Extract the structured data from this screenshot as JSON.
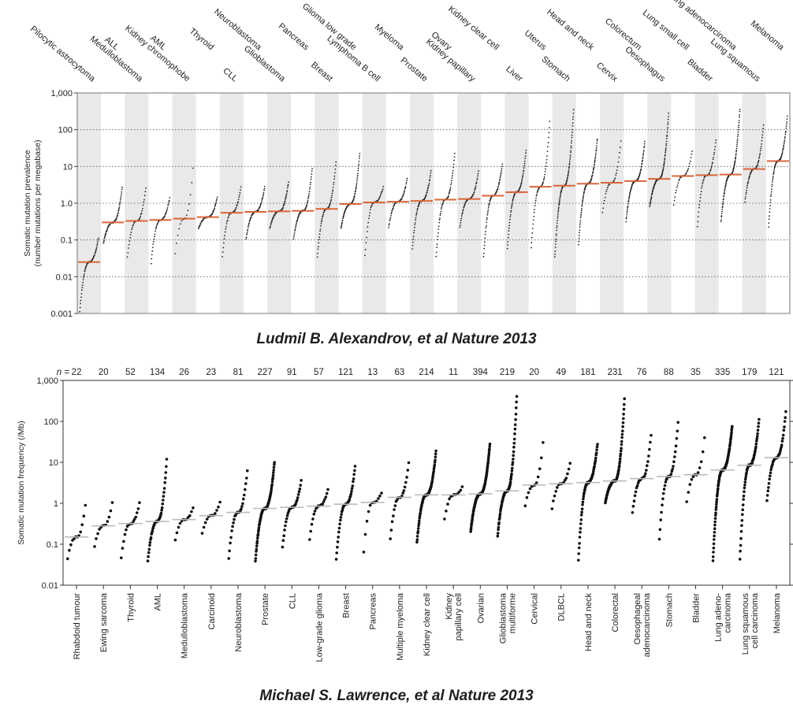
{
  "captions": {
    "top": "Ludmil B. Alexandrov, et al Nature 2013",
    "bottom": "Michael S. Lawrence, et al Nature 2013"
  },
  "chart_data": [
    {
      "type": "scatter",
      "title": "",
      "ylabel": "Somatic mutation prevalence\n(number mutations per megabase)",
      "yscale": "log",
      "ylim": [
        0.001,
        1000
      ],
      "yticks": [
        "0.001",
        "0.01",
        "0.1",
        "1.0",
        "10",
        "100",
        "1,000"
      ],
      "ytick_values": [
        0.001,
        0.01,
        0.1,
        1,
        10,
        100,
        1000
      ],
      "grid": "dotted horizontal at each decade",
      "median_color": "#d9663a",
      "point_color": "#222222",
      "categories": [
        "Pilocytic astrocytoma",
        "ALL",
        "Medulloblastoma",
        "AML",
        "Kidney chromophobe",
        "Thyroid",
        "CLL",
        "Neuroblastoma",
        "Glioblastoma",
        "Pancreas",
        "Breast",
        "Glioma low grade",
        "Lymphoma B cell",
        "Myeloma",
        "Prostate",
        "Ovary",
        "Kidney papillary",
        "Kidney clear cell",
        "Liver",
        "Uterus",
        "Stomach",
        "Head and neck",
        "Cervix",
        "Colorectum",
        "Oesophagus",
        "Lung small cell",
        "Bladder",
        "Lung adenocarcinoma",
        "Lung squamous",
        "Melanoma"
      ],
      "medians": [
        0.025,
        0.3,
        0.33,
        0.35,
        0.38,
        0.42,
        0.55,
        0.58,
        0.6,
        0.62,
        0.7,
        0.95,
        1.05,
        1.1,
        1.15,
        1.25,
        1.3,
        1.6,
        2.0,
        2.8,
        3.0,
        3.4,
        3.6,
        4.0,
        4.6,
        5.5,
        5.8,
        6.0,
        8.5,
        14
      ],
      "mins": [
        0.001,
        0.08,
        0.03,
        0.02,
        0.03,
        0.2,
        0.03,
        0.1,
        0.2,
        0.1,
        0.03,
        0.2,
        0.03,
        0.2,
        0.05,
        0.03,
        0.2,
        0.03,
        0.05,
        0.05,
        0.03,
        0.07,
        0.5,
        0.3,
        0.8,
        0.8,
        0.2,
        0.3,
        1.0,
        0.2
      ],
      "maxs": [
        0.12,
        3,
        3,
        1.5,
        15,
        1.5,
        3,
        3,
        4,
        10,
        15,
        25,
        3,
        5,
        8,
        25,
        8,
        12,
        30,
        200,
        400,
        60,
        60,
        50,
        300,
        30,
        60,
        400,
        150,
        250
      ],
      "counts": [
        55,
        65,
        35,
        45,
        15,
        50,
        40,
        55,
        60,
        60,
        55,
        80,
        35,
        50,
        60,
        55,
        50,
        65,
        65,
        50,
        95,
        90,
        30,
        80,
        100,
        30,
        45,
        100,
        55,
        75
      ]
    },
    {
      "type": "scatter",
      "title": "",
      "ylabel": "Somatic mutation frequency (/Mb)",
      "yscale": "log",
      "ylim": [
        0.01,
        1000
      ],
      "yticks": [
        "0.01",
        "0.1",
        "1",
        "10",
        "100",
        "1,000"
      ],
      "ytick_values": [
        0.01,
        0.1,
        1,
        10,
        100,
        1000
      ],
      "n_prefix": "n =",
      "median_color": "#bbbbbb",
      "point_color": "#111111",
      "categories": [
        "Rhabdoid tumour",
        "Ewing sarcoma",
        "Thyroid",
        "AML",
        "Medulloblastoma",
        "Carcinoid",
        "Neuroblastoma",
        "Prostate",
        "CLL",
        "Low-grade glioma",
        "Breast",
        "Pancreas",
        "Multiple myeloma",
        "Kidney clear cell",
        "Kidney papillary cell",
        "Ovarian",
        "Glioblastoma multiforme",
        "Cervical",
        "DLBCL",
        "Head and neck",
        "Colorectal",
        "Oesophageal adenocarcinoma",
        "Stomach",
        "Bladder",
        "Lung adeno-carcinoma",
        "Lung squamous cell carcinoma",
        "Melanoma"
      ],
      "n": [
        "22",
        "20",
        "52",
        "134",
        "26",
        "23",
        "81",
        "227",
        "91",
        "57",
        "121",
        "13",
        "63",
        "214",
        "11",
        "394",
        "219",
        "20",
        "49",
        "181",
        "231",
        "76",
        "88",
        "35",
        "335",
        "179",
        "121"
      ],
      "medians": [
        0.15,
        0.28,
        0.32,
        0.36,
        0.4,
        0.5,
        0.6,
        0.75,
        0.8,
        0.85,
        0.95,
        1.05,
        1.4,
        1.6,
        1.6,
        1.7,
        2.0,
        2.8,
        3.0,
        3.2,
        3.5,
        4.0,
        4.5,
        5.0,
        6.5,
        8.5,
        13
      ],
      "mins": [
        0.035,
        0.07,
        0.035,
        0.035,
        0.1,
        0.15,
        0.035,
        0.035,
        0.07,
        0.1,
        0.035,
        0.035,
        0.1,
        0.1,
        0.3,
        0.2,
        0.15,
        0.7,
        0.6,
        0.035,
        1.0,
        0.5,
        0.1,
        0.8,
        0.035,
        0.035,
        1.0
      ],
      "maxs": [
        1.3,
        1.4,
        1.2,
        14,
        0.9,
        1.3,
        8,
        11,
        4,
        2.5,
        9,
        2,
        12,
        20,
        2.8,
        30,
        500,
        50,
        11,
        30,
        400,
        60,
        120,
        60,
        80,
        120,
        200
      ]
    }
  ]
}
